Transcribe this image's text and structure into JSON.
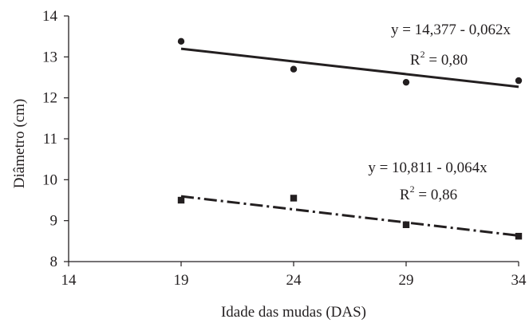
{
  "chart_data": {
    "type": "scatter",
    "xlabel": "Idade das mudas (DAS)",
    "ylabel": "Diâmetro (cm)",
    "xlim": [
      14,
      34
    ],
    "ylim": [
      8,
      14
    ],
    "x_ticks": [
      "14",
      "19",
      "24",
      "29",
      "34"
    ],
    "y_ticks": [
      "8",
      "9",
      "10",
      "11",
      "12",
      "13",
      "14"
    ],
    "grid": false,
    "series": [
      {
        "marker": "circle",
        "line_style": "solid",
        "x": [
          19,
          24,
          29,
          34
        ],
        "y": [
          13.38,
          12.7,
          12.38,
          12.42
        ],
        "fit": {
          "intercept": 14.377,
          "slope": -0.062
        },
        "equation": "y = 14,377 - 0,062x",
        "r2_label": "R",
        "r2_sup": "2",
        "r2_value": " = 0,80"
      },
      {
        "marker": "square",
        "line_style": "dash-dot",
        "x": [
          19,
          24,
          29,
          34
        ],
        "y": [
          9.5,
          9.55,
          8.9,
          8.62
        ],
        "fit": {
          "intercept": 10.811,
          "slope": -0.064
        },
        "equation": "y = 10,811 - 0,064x",
        "r2_label": "R",
        "r2_sup": "2",
        "r2_value": " = 0,86"
      }
    ],
    "colors": {
      "ink": "#231f20"
    }
  }
}
